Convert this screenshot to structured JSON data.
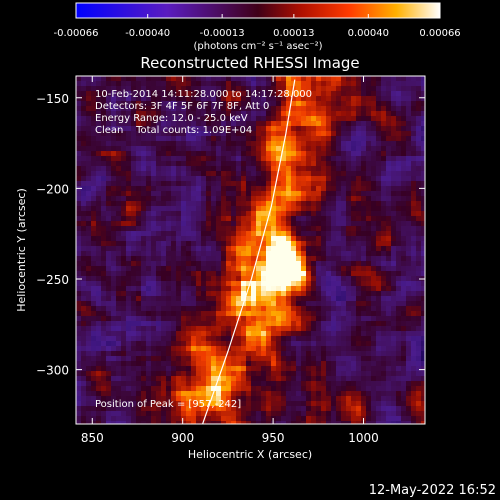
{
  "colorbar": {
    "tick_labels": [
      "-0.00066",
      "-0.00040",
      "-0.00013",
      "0.00013",
      "0.00040",
      "0.00066"
    ],
    "tick_values": [
      -0.00066,
      -0.0004,
      -0.00013,
      0.00013,
      0.0004,
      0.00066
    ],
    "range": [
      -0.00066,
      0.00066
    ],
    "unit_label": "(photons cm⁻² s⁻¹ asec⁻²)"
  },
  "chart_data": {
    "type": "heatmap",
    "title": "Reconstructed RHESSI Image",
    "xlabel": "Heliocentric X (arcsec)",
    "ylabel": "Heliocentric Y (arcsec)",
    "xlim": [
      841,
      1034
    ],
    "ylim": [
      -330,
      -138
    ],
    "x_ticks": [
      850,
      900,
      950,
      1000
    ],
    "x_tick_labels": [
      "850",
      "900",
      "950",
      "1000"
    ],
    "y_ticks": [
      -150,
      -200,
      -250,
      -300
    ],
    "y_tick_labels": [
      "−150",
      "−200",
      "−250",
      "−300"
    ],
    "info_lines": [
      "10-Feb-2014 14:11:28.000 to 14:17:28.000",
      "Detectors: 3F 4F 5F 6F 7F 8F, Att 0",
      "Energy Range: 12.0 - 25.0 keV",
      "Clean    Total counts: 1.09E+04"
    ],
    "peak_label": "Position of Peak = [957,-242]",
    "peak": [
      957,
      -242
    ],
    "limb": [
      [
        911,
        -330
      ],
      [
        925,
        -290
      ],
      [
        938,
        -250
      ],
      [
        949,
        -210
      ],
      [
        957,
        -170
      ],
      [
        962,
        -140
      ]
    ]
  },
  "footer": {
    "date": "12-May-2022 16:52"
  }
}
